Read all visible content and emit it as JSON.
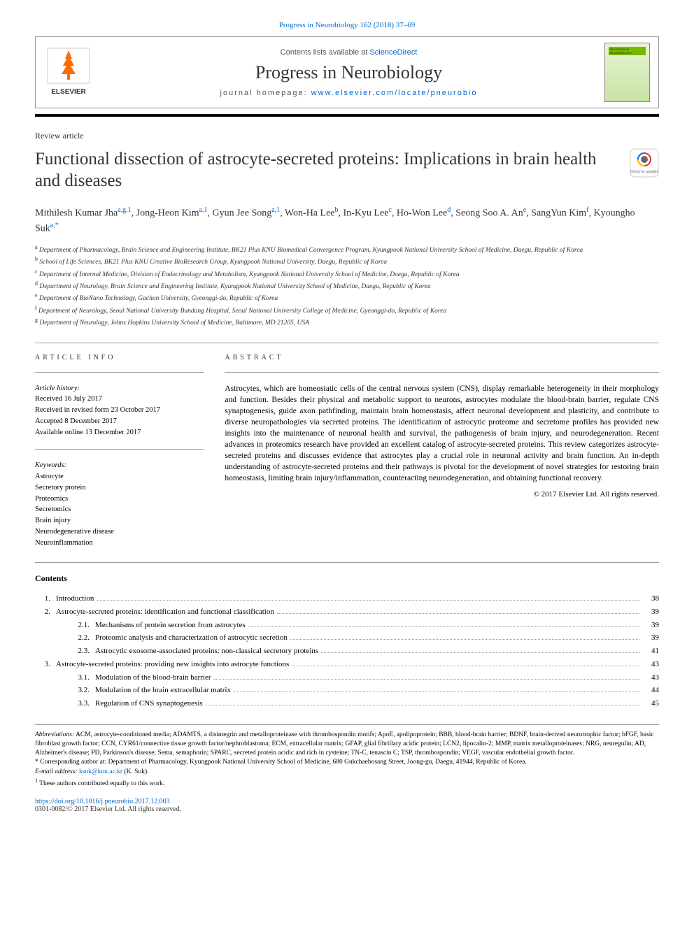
{
  "top_link": "Progress in Neurobiology 162 (2018) 37–69",
  "header": {
    "contents_text": "Contents lists available at ",
    "contents_link": "ScienceDirect",
    "journal_name": "Progress in Neurobiology",
    "homepage_label": "journal homepage: ",
    "homepage_url": "www.elsevier.com/locate/pneurobio"
  },
  "article_type": "Review article",
  "title": "Functional dissection of astrocyte-secreted proteins: Implications in brain health and diseases",
  "authors_html": "Mithilesh Kumar Jha<sup>a,g,1</sup>, Jong-Heon Kim<sup>a,1</sup>, Gyun Jee Song<sup>a,1</sup>, Won-Ha Lee<sup>b</sup>, In-Kyu Lee<sup>c</sup>, Ho-Won Lee<sup>d</sup>, Seong Soo A. An<sup>e</sup>, SangYun Kim<sup>f</sup>, Kyoungho Suk<sup>a,*</sup>",
  "affiliations": [
    {
      "sup": "a",
      "text": "Department of Pharmacology, Brain Science and Engineering Institute, BK21 Plus KNU Biomedical Convergence Program, Kyungpook National University School of Medicine, Daegu, Republic of Korea"
    },
    {
      "sup": "b",
      "text": "School of Life Sciences, BK21 Plus KNU Creative BioResearch Group, Kyungpook National University, Daegu, Republic of Korea"
    },
    {
      "sup": "c",
      "text": "Department of Internal Medicine, Division of Endocrinology and Metabolism, Kyungpook National University School of Medicine, Daegu, Republic of Korea"
    },
    {
      "sup": "d",
      "text": "Department of Neurology, Brain Science and Engineering Institute, Kyungpook National University School of Medicine, Daegu, Republic of Korea"
    },
    {
      "sup": "e",
      "text": "Department of BioNano Technology, Gachon University, Gyeonggi-do, Republic of Korea"
    },
    {
      "sup": "f",
      "text": "Department of Neurology, Seoul National University Bundang Hospital, Seoul National University College of Medicine, Gyeonggi-do, Republic of Korea"
    },
    {
      "sup": "g",
      "text": "Department of Neurology, Johns Hopkins University School of Medicine, Baltimore, MD 21205, USA"
    }
  ],
  "article_info_label": "ARTICLE INFO",
  "abstract_label": "ABSTRACT",
  "history": {
    "heading": "Article history:",
    "received": "Received 16 July 2017",
    "revised": "Received in revised form 23 October 2017",
    "accepted": "Accepted 8 December 2017",
    "online": "Available online 13 December 2017"
  },
  "keywords": {
    "heading": "Keywords:",
    "items": [
      "Astrocyte",
      "Secretory protein",
      "Proteomics",
      "Secretomics",
      "Brain injury",
      "Neurodegenerative disease",
      "Neuroinflammation"
    ]
  },
  "abstract": "Astrocytes, which are homeostatic cells of the central nervous system (CNS), display remarkable heterogeneity in their morphology and function. Besides their physical and metabolic support to neurons, astrocytes modulate the blood-brain barrier, regulate CNS synaptogenesis, guide axon pathfinding, maintain brain homeostasis, affect neuronal development and plasticity, and contribute to diverse neuropathologies via secreted proteins. The identification of astrocytic proteome and secretome profiles has provided new insights into the maintenance of neuronal health and survival, the pathogenesis of brain injury, and neurodegeneration. Recent advances in proteomics research have provided an excellent catalog of astrocyte-secreted proteins. This review categorizes astrocyte-secreted proteins and discusses evidence that astrocytes play a crucial role in neuronal activity and brain function. An in-depth understanding of astrocyte-secreted proteins and their pathways is pivotal for the development of novel strategies for restoring brain homeostasis, limiting brain injury/inflammation, counteracting neurodegeneration, and obtaining functional recovery.",
  "copyright": "© 2017 Elsevier Ltd. All rights reserved.",
  "contents_heading": "Contents",
  "toc": [
    {
      "num": "1.",
      "title": "Introduction",
      "page": "38",
      "level": 0
    },
    {
      "num": "2.",
      "title": "Astrocyte-secreted proteins: identification and functional classification",
      "page": "39",
      "level": 0
    },
    {
      "num": "2.1.",
      "title": "Mechanisms of protein secretion from astrocytes",
      "page": "39",
      "level": 1
    },
    {
      "num": "2.2.",
      "title": "Proteomic analysis and characterization of astrocytic secretion",
      "page": "39",
      "level": 1
    },
    {
      "num": "2.3.",
      "title": "Astrocytic exosome-associated proteins: non-classical secretory proteins",
      "page": "41",
      "level": 1
    },
    {
      "num": "3.",
      "title": "Astrocyte-secreted proteins: providing new insights into astrocyte functions",
      "page": "43",
      "level": 0
    },
    {
      "num": "3.1.",
      "title": "Modulation of the blood-brain barrier",
      "page": "43",
      "level": 1
    },
    {
      "num": "3.2.",
      "title": "Modulation of the brain extracellular matrix",
      "page": "44",
      "level": 1
    },
    {
      "num": "3.3.",
      "title": "Regulation of CNS synaptogenesis",
      "page": "45",
      "level": 1
    }
  ],
  "abbreviations": {
    "label": "Abbreviations:",
    "text": " ACM, astrocyte-conditioned media; ADAMTS, a disintegrin and metalloproteinase with thrombospondin motifs; ApoE, apolipoprotein; BBB, blood-brain barrier; BDNF, brain-derived neurotrophic factor; bFGF, basic fibroblast growth factor; CCN, CYR61/connective tissue growth factor/nephroblastoma; ECM, extracellular matrix; GFAP, glial fibrillary acidic protein; LCN2, lipocalin-2; MMP, matrix metalloproteinases; NRG, neuregulin; AD, Alzheimer's disease; PD, Parkinson's disease; Sema, semaphorin; SPARC, secreted protein acidic and rich in cysteine; TN-C, tenascin C; TSP, thrombospondin; VEGF, vascular endothelial growth factor."
  },
  "corresponding": {
    "marker": "*",
    "text": " Corresponding author at: Department of Pharmacology, Kyungpook National University School of Medicine, 680 Gukchaebosang Street, Joong-gu, Daegu, 41944, Republic of Korea."
  },
  "email": {
    "label": "E-mail address: ",
    "address": "ksuk@knu.ac.kr",
    "suffix": " (K. Suk)."
  },
  "equal_contrib": {
    "marker": "1",
    "text": " These authors contributed equally to this work."
  },
  "doi": "https://doi.org/10.1016/j.pneurobio.2017.12.003",
  "bottom_copyright": "0301-0082/© 2017 Elsevier Ltd. All rights reserved.",
  "colors": {
    "link": "#0066cc",
    "text": "#333333",
    "border": "#999999",
    "elsevier_orange": "#ff6b00"
  }
}
